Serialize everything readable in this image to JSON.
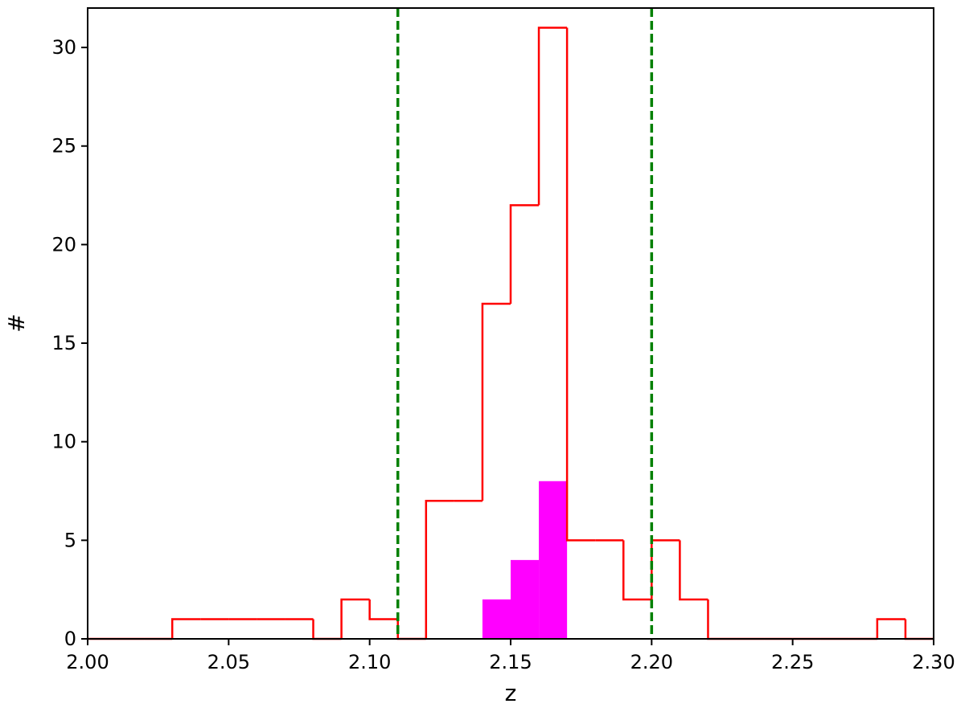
{
  "chart_data": {
    "type": "histogram",
    "xlabel": "z",
    "ylabel": "#",
    "bins": [
      2.0,
      2.01,
      2.02,
      2.03,
      2.04,
      2.05,
      2.06,
      2.07,
      2.08,
      2.09,
      2.1,
      2.11,
      2.12,
      2.13,
      2.14,
      2.15,
      2.16,
      2.17,
      2.18,
      2.19,
      2.2,
      2.21,
      2.22,
      2.23,
      2.24,
      2.25,
      2.26,
      2.27,
      2.28,
      2.29,
      2.3
    ],
    "series": [
      {
        "color": "#ff0000",
        "style": "step",
        "values": [
          0,
          0,
          0,
          1,
          1,
          1,
          1,
          1,
          0,
          2,
          1,
          0,
          7,
          7,
          17,
          22,
          31,
          5,
          5,
          2,
          5,
          2,
          0,
          0,
          0,
          0,
          0,
          0,
          1,
          0
        ]
      },
      {
        "color": "#ff00ff",
        "style": "filled",
        "values": [
          0,
          0,
          0,
          0,
          0,
          0,
          0,
          0,
          0,
          0,
          0,
          0,
          0,
          0,
          2,
          4,
          8,
          0,
          0,
          0,
          0,
          0,
          0,
          0,
          0,
          0,
          0,
          0,
          0,
          0
        ]
      }
    ],
    "vlines": [
      2.11,
      2.2
    ],
    "vline_color": "#008000",
    "xlim": [
      2.0,
      2.3
    ],
    "ylim": [
      0,
      32
    ],
    "xticks": [
      {
        "value": 2.0,
        "label": "2.00"
      },
      {
        "value": 2.05,
        "label": "2.05"
      },
      {
        "value": 2.1,
        "label": "2.10"
      },
      {
        "value": 2.15,
        "label": "2.15"
      },
      {
        "value": 2.2,
        "label": "2.20"
      },
      {
        "value": 2.25,
        "label": "2.25"
      },
      {
        "value": 2.3,
        "label": "2.30"
      }
    ],
    "yticks": [
      0,
      5,
      10,
      15,
      20,
      25,
      30
    ],
    "grid": false
  }
}
